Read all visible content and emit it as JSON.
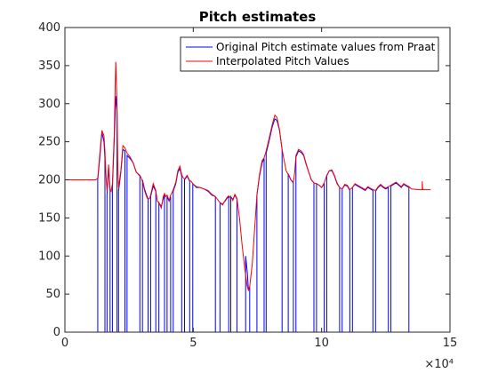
{
  "chart_data": {
    "type": "line",
    "title": "Pitch estimates",
    "xlabel": "",
    "ylabel": "",
    "xlim": [
      0,
      150000
    ],
    "ylim": [
      0,
      400
    ],
    "x_ticks": [
      0,
      50000,
      100000,
      150000
    ],
    "x_tick_labels": [
      "0",
      "5",
      "10",
      "15"
    ],
    "x_exponent_label": "×10⁴",
    "y_ticks": [
      0,
      50,
      100,
      150,
      200,
      250,
      300,
      350,
      400
    ],
    "y_tick_labels": [
      "0",
      "50",
      "100",
      "150",
      "200",
      "250",
      "300",
      "350",
      "400"
    ],
    "grid": false,
    "legend_position": "top-right",
    "series": [
      {
        "name": "Original Pitch estimate values from Praat",
        "color": "#0000ff",
        "segments": [
          {
            "x": [
              12800,
              13600,
              14400,
              15200,
              15600
            ],
            "y": [
              200,
              230,
              262,
              250,
              228
            ]
          },
          {
            "x": [
              16400,
              17000,
              17600
            ],
            "y": [
              180,
              215,
              185
            ]
          },
          {
            "x": [
              18500,
              19200,
              19800,
              20300
            ],
            "y": [
              190,
              250,
              310,
              290
            ]
          },
          {
            "x": [
              20900,
              21800,
              22600,
              23400
            ],
            "y": [
              185,
              210,
              240,
              238
            ]
          },
          {
            "x": [
              24200,
              25400,
              26600,
              27800,
              29200
            ],
            "y": [
              232,
              228,
              222,
              210,
              205
            ]
          },
          {
            "x": [
              30200,
              31000,
              31800,
              32400
            ],
            "y": [
              200,
              188,
              180,
              175
            ]
          },
          {
            "x": [
              33400,
              34400,
              35400
            ],
            "y": [
              178,
              192,
              185
            ]
          },
          {
            "x": [
              36600,
              37500,
              38300,
              38800
            ],
            "y": [
              170,
              165,
              175,
              180
            ]
          },
          {
            "x": [
              39800,
              40600,
              41200
            ],
            "y": [
              178,
              172,
              178
            ]
          },
          {
            "x": [
              42200,
              43200,
              44000,
              44800,
              45500
            ],
            "y": [
              185,
              195,
              210,
              215,
              205
            ]
          },
          {
            "x": [
              46600,
              47600,
              48600
            ],
            "y": [
              200,
              205,
              198
            ]
          },
          {
            "x": [
              49800,
              51200,
              52600,
              54200,
              55800,
              57200,
              58600
            ],
            "y": [
              195,
              190,
              190,
              188,
              185,
              180,
              178
            ]
          },
          {
            "x": [
              60400,
              61400,
              62400,
              63200,
              63800
            ],
            "y": [
              170,
              168,
              172,
              176,
              178
            ]
          },
          {
            "x": [
              64600,
              65400,
              66200,
              67000
            ],
            "y": [
              178,
              174,
              180,
              175
            ]
          },
          {
            "x": [
              70400,
              71000,
              71500,
              72000
            ],
            "y": [
              100,
              80,
              55,
              60
            ]
          },
          {
            "x": [
              74800,
              75800,
              76800,
              77600
            ],
            "y": [
              180,
              205,
              222,
              228
            ]
          },
          {
            "x": [
              78400,
              79600,
              80800,
              81800,
              82600,
              83600,
              84600
            ],
            "y": [
              235,
              252,
              270,
              280,
              278,
              265,
              240
            ]
          },
          {
            "x": [
              87000,
              88000,
              89000
            ],
            "y": [
              208,
              200,
              196
            ]
          },
          {
            "x": [
              90000,
              91000,
              92000,
              93000,
              94000,
              95000,
              96000,
              97000
            ],
            "y": [
              230,
              238,
              236,
              232,
              220,
              210,
              200,
              196
            ]
          },
          {
            "x": [
              98000,
              99000,
              100000,
              101000
            ],
            "y": [
              195,
              193,
              190,
              195
            ]
          },
          {
            "x": [
              102000,
              103000,
              104000,
              105000,
              106000,
              107000
            ],
            "y": [
              205,
              212,
              212,
              205,
              195,
              190
            ]
          },
          {
            "x": [
              108000,
              109000,
              110000,
              111000
            ],
            "y": [
              188,
              193,
              192,
              186
            ]
          },
          {
            "x": [
              112000,
              113000,
              114000,
              115000,
              116000,
              117000,
              118000,
              119000,
              120000
            ],
            "y": [
              190,
              194,
              192,
              190,
              188,
              186,
              190,
              188,
              186
            ]
          },
          {
            "x": [
              121000,
              122000,
              123000,
              124000,
              125000,
              126000
            ],
            "y": [
              185,
              190,
              193,
              190,
              188,
              190
            ]
          },
          {
            "x": [
              127000,
              128000,
              129000,
              130000,
              131000,
              132000,
              133000,
              134000
            ],
            "y": [
              192,
              194,
              196,
              193,
              190,
              194,
              192,
              190
            ]
          }
        ]
      },
      {
        "name": "Interpolated Pitch Values",
        "color": "#ff0000",
        "x": [
          0,
          11000,
          12000,
          12800,
          13600,
          14400,
          15200,
          15600,
          16000,
          16400,
          17000,
          17600,
          18000,
          18500,
          19200,
          19600,
          19800,
          20300,
          20600,
          20900,
          21800,
          22600,
          23400,
          24200,
          25400,
          26600,
          27800,
          29200,
          29800,
          30200,
          31000,
          31800,
          32400,
          33000,
          33400,
          34400,
          35400,
          36000,
          36600,
          37500,
          38300,
          38800,
          39300,
          39800,
          40600,
          41200,
          41700,
          42200,
          43200,
          44000,
          44800,
          45500,
          46000,
          46600,
          47600,
          48600,
          49200,
          49800,
          51200,
          52600,
          54200,
          55800,
          57200,
          58600,
          59500,
          60400,
          61400,
          62400,
          63200,
          63800,
          64200,
          64600,
          65400,
          66200,
          67000,
          68000,
          69000,
          70000,
          70400,
          71000,
          71500,
          72000,
          73000,
          74000,
          74800,
          75800,
          76800,
          77600,
          78400,
          79600,
          80800,
          81800,
          82600,
          83600,
          84600,
          85600,
          86200,
          87000,
          88000,
          89000,
          89500,
          90000,
          91000,
          92000,
          93000,
          94000,
          95000,
          96000,
          97000,
          98000,
          99000,
          100000,
          101000,
          102000,
          103000,
          104000,
          105000,
          106000,
          107000,
          108000,
          109000,
          110000,
          111000,
          112000,
          113000,
          114000,
          115000,
          116000,
          117000,
          118000,
          119000,
          120000,
          121000,
          122000,
          123000,
          124000,
          125000,
          126000,
          127000,
          128000,
          129000,
          130000,
          131000,
          132000,
          133000,
          134000,
          135000,
          138000,
          139000,
          139200,
          139200,
          139400,
          142500
        ],
        "y": [
          200,
          200,
          200,
          202,
          235,
          265,
          258,
          238,
          205,
          185,
          220,
          188,
          185,
          195,
          258,
          325,
          355,
          300,
          215,
          190,
          212,
          245,
          242,
          235,
          230,
          222,
          210,
          206,
          202,
          198,
          186,
          178,
          174,
          176,
          180,
          195,
          186,
          172,
          170,
          163,
          178,
          182,
          178,
          180,
          173,
          180,
          183,
          187,
          197,
          212,
          218,
          207,
          203,
          201,
          206,
          199,
          198,
          195,
          191,
          190,
          188,
          186,
          181,
          178,
          174,
          170,
          167,
          173,
          177,
          179,
          177,
          178,
          173,
          181,
          176,
          150,
          115,
          85,
          75,
          60,
          55,
          60,
          90,
          140,
          180,
          207,
          225,
          229,
          238,
          255,
          273,
          285,
          282,
          266,
          240,
          222,
          212,
          207,
          200,
          197,
          210,
          232,
          240,
          238,
          233,
          221,
          210,
          200,
          196,
          195,
          193,
          190,
          196,
          206,
          212,
          213,
          206,
          196,
          190,
          188,
          194,
          193,
          187,
          190,
          195,
          193,
          191,
          189,
          187,
          191,
          189,
          187,
          186,
          191,
          194,
          191,
          189,
          191,
          193,
          195,
          197,
          194,
          191,
          195,
          193,
          191,
          188,
          187,
          187,
          187,
          198,
          187,
          187
        ]
      }
    ]
  }
}
